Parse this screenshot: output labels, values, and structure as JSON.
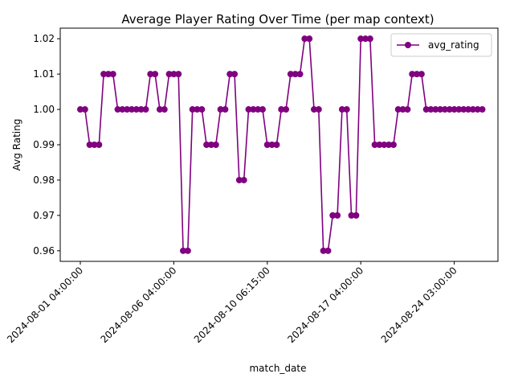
{
  "chart_data": {
    "type": "line",
    "title": "Average Player Rating Over Time (per map context)",
    "xlabel": "match_date",
    "ylabel": "Avg Rating",
    "ylim": [
      0.957,
      1.023
    ],
    "y_ticks": [
      0.96,
      0.97,
      0.98,
      0.99,
      1.0,
      1.01,
      1.02
    ],
    "y_tick_labels": [
      "0.96",
      "0.97",
      "0.98",
      "0.99",
      "1.00",
      "1.01",
      "1.02"
    ],
    "x_tick_positions": [
      0,
      20,
      40,
      60,
      80
    ],
    "x_tick_labels": [
      "2024-08-01 04:00:00",
      "2024-08-06 04:00:00",
      "2024-08-10 06:15:00",
      "2024-08-17 04:00:00",
      "2024-08-24 03:00:00"
    ],
    "grid": false,
    "legend_position": "top-right",
    "series": [
      {
        "name": "avg_rating",
        "color": "#800080",
        "marker": "circle",
        "values": [
          1.0,
          1.0,
          0.99,
          0.99,
          0.99,
          1.01,
          1.01,
          1.01,
          1.0,
          1.0,
          1.0,
          1.0,
          1.0,
          1.0,
          1.0,
          1.01,
          1.01,
          1.0,
          1.0,
          1.01,
          1.01,
          1.01,
          0.96,
          0.96,
          1.0,
          1.0,
          1.0,
          0.99,
          0.99,
          0.99,
          1.0,
          1.0,
          1.01,
          1.01,
          0.98,
          0.98,
          1.0,
          1.0,
          1.0,
          1.0,
          0.99,
          0.99,
          0.99,
          1.0,
          1.0,
          1.01,
          1.01,
          1.01,
          1.02,
          1.02,
          1.0,
          1.0,
          0.96,
          0.96,
          0.97,
          0.97,
          1.0,
          1.0,
          0.97,
          0.97,
          1.02,
          1.02,
          1.02,
          0.99,
          0.99,
          0.99,
          0.99,
          0.99,
          1.0,
          1.0,
          1.0,
          1.01,
          1.01,
          1.01,
          1.0,
          1.0,
          1.0,
          1.0,
          1.0,
          1.0,
          1.0,
          1.0,
          1.0,
          1.0,
          1.0,
          1.0,
          1.0
        ]
      }
    ]
  }
}
